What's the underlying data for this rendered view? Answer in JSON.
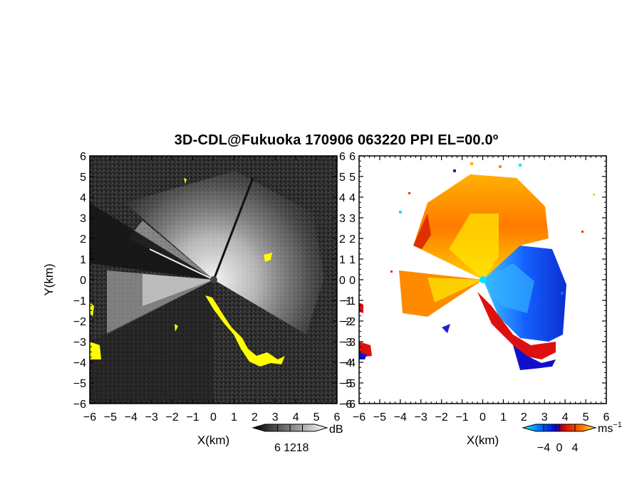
{
  "title": "3D-CDL@Fukuoka 170906 063220 PPI EL=00.0º",
  "chart_data": [
    {
      "type": "heatmap",
      "panel": "reflectivity",
      "xlabel": "X(km)",
      "ylabel": "Y(km)",
      "xlim": [
        -6,
        6
      ],
      "ylim": [
        -6,
        6
      ],
      "xticks": [
        "−6",
        "−5",
        "−4",
        "−3",
        "−2",
        "−1",
        "0",
        "1",
        "2",
        "3",
        "4",
        "5",
        "6"
      ],
      "yticks": [
        "6",
        "5",
        "4",
        "3",
        "2",
        "1",
        "0",
        "−1",
        "−2",
        "−3",
        "−4",
        "−5",
        "−6"
      ],
      "colorbar": {
        "label": "dB",
        "ticks": [
          "6",
          "12",
          "18"
        ],
        "range": [
          0,
          24
        ],
        "colors": [
          "#000000",
          "#ffffff"
        ]
      },
      "highlight_color": "#ffff00",
      "background": "#2a2a2a"
    },
    {
      "type": "heatmap",
      "panel": "doppler-velocity",
      "xlabel": "X(km)",
      "ylabel": "",
      "xlim": [
        -6,
        6
      ],
      "ylim": [
        -6,
        6
      ],
      "xticks": [
        "−6",
        "−5",
        "−4",
        "−3",
        "−2",
        "−1",
        "0",
        "1",
        "2",
        "3",
        "4",
        "5",
        "6"
      ],
      "yticks": [
        "6",
        "5",
        "4",
        "3",
        "2",
        "1",
        "0",
        "−1",
        "−2",
        "−3",
        "−4",
        "−5",
        "−6"
      ],
      "colorbar": {
        "label": "ms",
        "label_exponent": "−1",
        "ticks": [
          "−4",
          "0",
          "4"
        ],
        "range": [
          -6,
          6
        ],
        "colors": [
          "#00ffff",
          "#0070ff",
          "#0000cc",
          "#cc0000",
          "#ff6000",
          "#ffff00"
        ]
      },
      "background": "#ffffff"
    }
  ]
}
